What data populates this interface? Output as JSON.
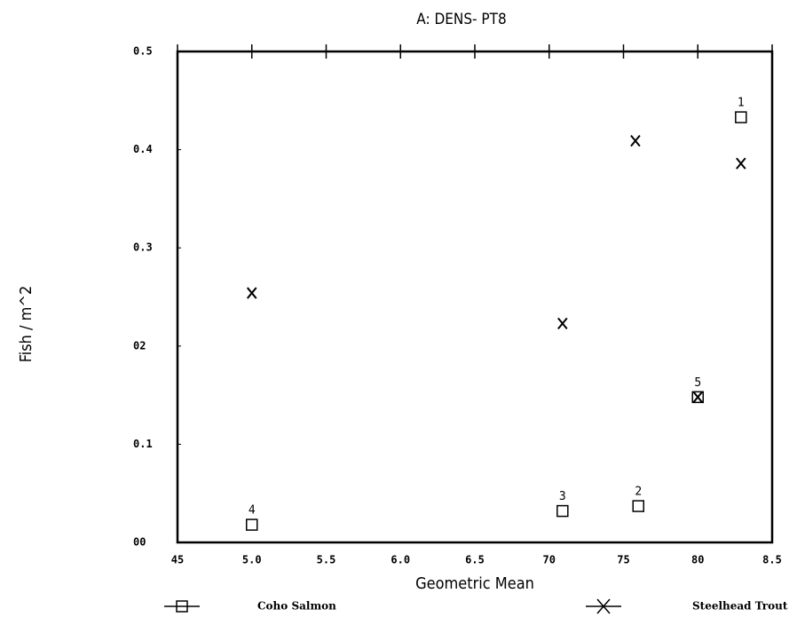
{
  "chart_data": {
    "type": "scatter",
    "title": "A: DENS- PT8",
    "xlabel": "Geometric Mean",
    "ylabel": "Fish / m^2",
    "xlim": [
      45,
      85
    ],
    "xticks": [
      45,
      {
        "value": 50,
        "label": "5.0"
      },
      {
        "value": 55,
        "label": "5.5"
      },
      {
        "value": 60,
        "label": "6.0"
      },
      {
        "value": 65,
        "label": "6.5"
      },
      70,
      75,
      80,
      {
        "value": 85,
        "label": "8.5"
      }
    ],
    "ylim": [
      0,
      0.5
    ],
    "yticks": [
      {
        "value": 0,
        "label": "00"
      },
      0.1,
      {
        "value": 0.2,
        "label": "02"
      },
      0.3,
      0.4,
      0.5
    ],
    "series": [
      {
        "name": "Coho Salmon",
        "color": "#000000",
        "marker": "square",
        "x": [
          82.9,
          76.0,
          70.9,
          50,
          80
        ],
        "values": [
          0.433,
          0.037,
          0.032,
          0.018,
          0.148
        ],
        "labels": [
          "1",
          "2",
          "3",
          "4",
          "5"
        ]
      },
      {
        "name": "Steelhead Trout",
        "color": "#000000",
        "marker": "x",
        "x": [
          50,
          70.9,
          75.8,
          82.9,
          80
        ],
        "values": [
          0.254,
          0.223,
          0.409,
          0.386,
          0.148
        ]
      }
    ]
  }
}
